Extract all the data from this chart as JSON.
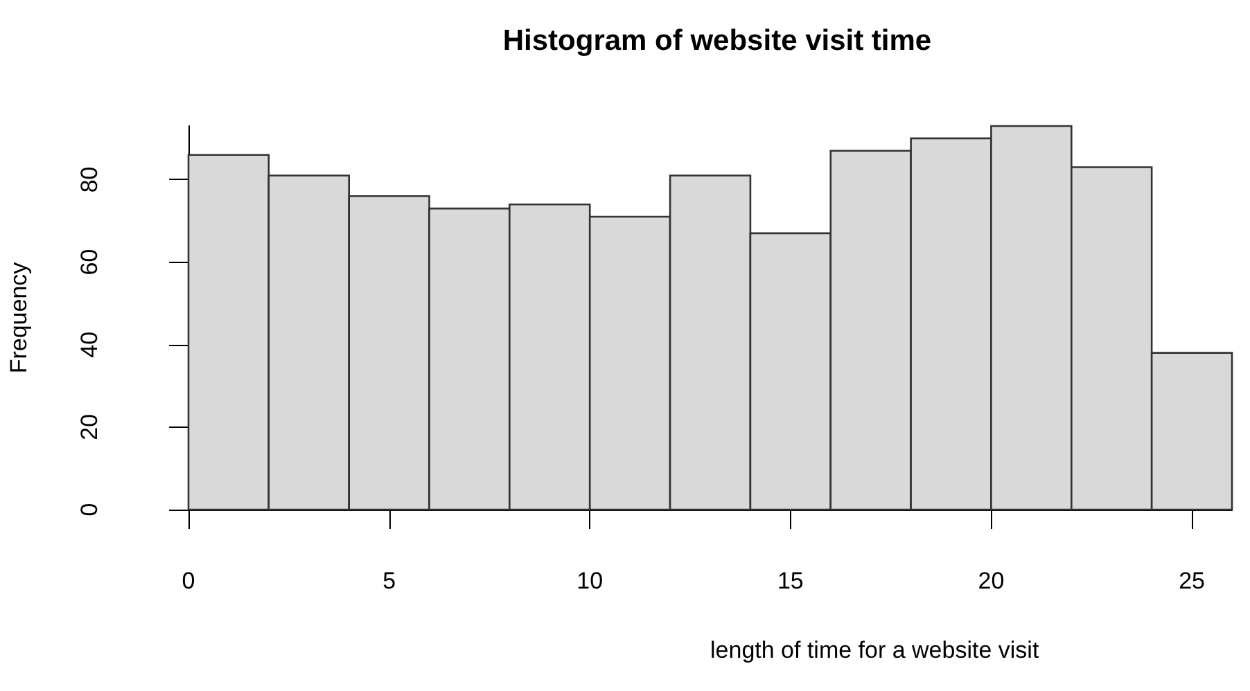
{
  "chart_data": {
    "type": "histogram",
    "title": "Histogram of website visit time",
    "xlabel": "length of time for a website visit",
    "ylabel": "Frequency",
    "bins": [
      0,
      2,
      4,
      6,
      8,
      10,
      12,
      14,
      16,
      18,
      20,
      22,
      24,
      26
    ],
    "values": [
      86,
      81,
      76,
      73,
      74,
      71,
      81,
      67,
      87,
      90,
      93,
      83,
      38
    ],
    "color": "#d9d9d9",
    "xlim": [
      0,
      26
    ],
    "ylim": [
      0,
      93
    ],
    "xticks": [
      0,
      5,
      10,
      15,
      20,
      25
    ],
    "yticks": [
      0,
      20,
      40,
      60,
      80
    ]
  }
}
